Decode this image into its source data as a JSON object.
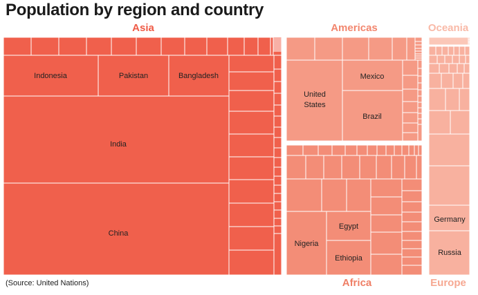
{
  "title": "Population by region and country",
  "source": "(Source: United Nations)",
  "colors": {
    "Asia": "#f0604c",
    "Americas": "#f59a85",
    "Africa": "#f38d77",
    "Oceania": "#fbc7b8",
    "Europe": "#f8b19f",
    "label_Asia": "#ef5a45",
    "label_Americas": "#f2866e",
    "label_Africa": "#ef7e65",
    "label_Oceania": "#f9b9a7",
    "label_Europe": "#f6a892"
  },
  "chart_data": {
    "type": "treemap",
    "title": "Population by region and country",
    "regions": [
      {
        "name": "Asia",
        "labeled_countries": [
          "China",
          "India",
          "Indonesia",
          "Pakistan",
          "Bangladesh"
        ]
      },
      {
        "name": "Americas",
        "labeled_countries": [
          "United States",
          "Mexico",
          "Brazil"
        ]
      },
      {
        "name": "Oceania",
        "labeled_countries": []
      },
      {
        "name": "Africa",
        "labeled_countries": [
          "Nigeria",
          "Egypt",
          "Ethiopia"
        ]
      },
      {
        "name": "Europe",
        "labeled_countries": [
          "Germany",
          "Russia"
        ]
      }
    ]
  }
}
